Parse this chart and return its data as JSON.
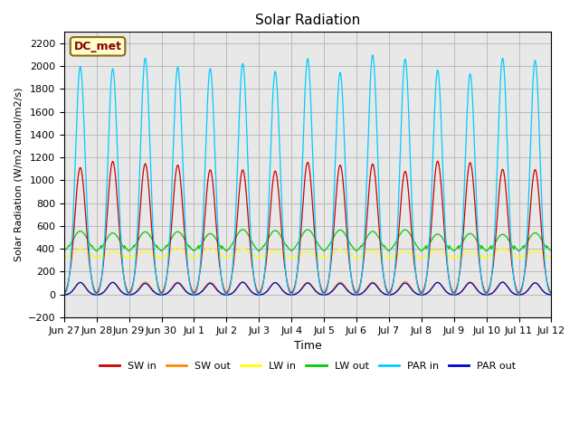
{
  "title": "Solar Radiation",
  "xlabel": "Time",
  "ylabel": "Solar Radiation (W/m2 umol/m2/s)",
  "ylim": [
    -200,
    2300
  ],
  "yticks": [
    -200,
    0,
    200,
    400,
    600,
    800,
    1000,
    1200,
    1400,
    1600,
    1800,
    2000,
    2200
  ],
  "background_color": "#e8e8e8",
  "legend_label": "DC_met",
  "series": {
    "SW_in": {
      "color": "#cc0000"
    },
    "SW_out": {
      "color": "#ff8800"
    },
    "LW_in": {
      "color": "#ffff00"
    },
    "LW_out": {
      "color": "#00cc00"
    },
    "PAR_in": {
      "color": "#00ccff"
    },
    "PAR_out": {
      "color": "#0000cc"
    }
  },
  "n_days": 15,
  "tick_labels": [
    "Jun 27",
    "Jun 28",
    "Jun 29",
    "Jun 30",
    "Jul 1",
    "Jul 2",
    "Jul 3",
    "Jul 4",
    "Jul 5",
    "Jul 6",
    "Jul 7",
    "Jul 8",
    "Jul 9",
    "Jul 10",
    "Jul 11",
    "Jul 12"
  ],
  "legend_entries": [
    {
      "label": "SW in",
      "color": "#cc0000"
    },
    {
      "label": "SW out",
      "color": "#ff8800"
    },
    {
      "label": "LW in",
      "color": "#ffff00"
    },
    {
      "label": "LW out",
      "color": "#00cc00"
    },
    {
      "label": "PAR in",
      "color": "#00ccff"
    },
    {
      "label": "PAR out",
      "color": "#0000cc"
    }
  ]
}
